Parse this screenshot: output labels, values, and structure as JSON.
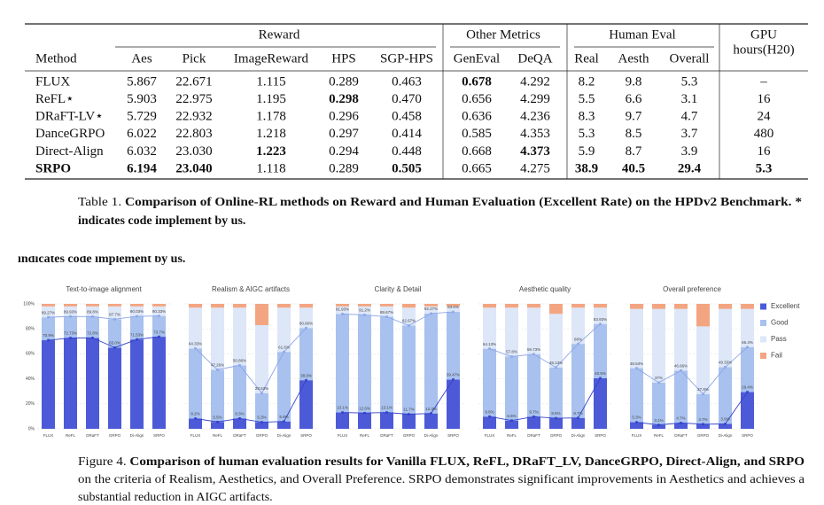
{
  "table": {
    "groups": [
      "Reward",
      "Other Metrics",
      "Human Eval"
    ],
    "gpu_header": [
      "GPU",
      "hours(H20)"
    ],
    "columns": [
      "Method",
      "Aes",
      "Pick",
      "ImageReward",
      "HPS",
      "SGP-HPS",
      "GenEval",
      "DeQA",
      "Real",
      "Aesth",
      "Overall"
    ],
    "rows": [
      {
        "cells": [
          "FLUX",
          "5.867",
          "22.671",
          "1.115",
          "0.289",
          "0.463",
          "0.678",
          "4.292",
          "8.2",
          "9.8",
          "5.3",
          "–"
        ],
        "bold": [
          false,
          false,
          false,
          false,
          false,
          false,
          true,
          false,
          false,
          false,
          false,
          false
        ]
      },
      {
        "cells": [
          "ReFL⋆",
          "5.903",
          "22.975",
          "1.195",
          "0.298",
          "0.470",
          "0.656",
          "4.299",
          "5.5",
          "6.6",
          "3.1",
          "16"
        ],
        "bold": [
          false,
          false,
          false,
          false,
          true,
          false,
          false,
          false,
          false,
          false,
          false,
          false
        ]
      },
      {
        "cells": [
          "DRaFT-LV⋆",
          "5.729",
          "22.932",
          "1.178",
          "0.296",
          "0.458",
          "0.636",
          "4.236",
          "8.3",
          "9.7",
          "4.7",
          "24"
        ],
        "bold": [
          false,
          false,
          false,
          false,
          false,
          false,
          false,
          false,
          false,
          false,
          false,
          false
        ]
      },
      {
        "cells": [
          "DanceGRPO",
          "6.022",
          "22.803",
          "1.218",
          "0.297",
          "0.414",
          "0.585",
          "4.353",
          "5.3",
          "8.5",
          "3.7",
          "480"
        ],
        "bold": [
          false,
          false,
          false,
          false,
          false,
          false,
          false,
          false,
          false,
          false,
          false,
          false
        ]
      },
      {
        "cells": [
          "Direct-Align",
          "6.032",
          "23.030",
          "1.223",
          "0.294",
          "0.448",
          "0.668",
          "4.373",
          "5.9",
          "8.7",
          "3.9",
          "16"
        ],
        "bold": [
          false,
          false,
          false,
          true,
          false,
          false,
          false,
          true,
          false,
          false,
          false,
          false
        ]
      },
      {
        "cells": [
          "SRPO",
          "6.194",
          "23.040",
          "1.118",
          "0.289",
          "0.505",
          "0.665",
          "4.275",
          "38.9",
          "40.5",
          "29.4",
          "5.3"
        ],
        "bold": [
          true,
          true,
          true,
          false,
          false,
          true,
          false,
          false,
          true,
          true,
          true,
          true
        ]
      }
    ],
    "caption": {
      "label": "Table 1.",
      "lines": [
        "Comparison of Online-RL methods on Reward and Human Evaluation (Excellent Rate) on the HPDv2 Benchmark. *",
        "indicates code implement by us."
      ]
    }
  },
  "chart_data": [
    {
      "type": "bar",
      "stacked": true,
      "title": "Text-to-image alignment",
      "categories": [
        "FLUX",
        "ReFL",
        "DRaFT",
        "GRPO",
        "Di-Align",
        "SRPO"
      ],
      "ylim": [
        0,
        100
      ],
      "yticks": [
        {
          "value": 0,
          "label": "0%"
        },
        {
          "value": 20,
          "label": "20%"
        },
        {
          "value": 40,
          "label": "40%"
        },
        {
          "value": 60,
          "label": "60%"
        },
        {
          "value": 80,
          "label": "80%"
        },
        {
          "value": 100,
          "label": "100%"
        }
      ],
      "grid": true,
      "line_colors": [
        "#3342c8",
        "#8ea6e6"
      ],
      "series": [
        {
          "name": "Excellent",
          "color": "#4d5ad8",
          "values": [
            70.9,
            72.73,
            72.8,
            65.0,
            71.53,
            73.7
          ],
          "value_labels": [
            "70.9%",
            "72.73%",
            "72.8%",
            "65.0%",
            "71.53%",
            "73.7%"
          ]
        },
        {
          "name": "Good",
          "color": "#a8c1ee",
          "values": [
            18.37,
            17.2,
            17.0,
            22.7,
            18.5,
            16.63
          ]
        },
        {
          "name": "Pass",
          "color": "#dde7f8",
          "values": [
            8.73,
            8.07,
            8.2,
            10.3,
            7.97,
            7.67
          ]
        },
        {
          "name": "Fail",
          "color": "#f3a582",
          "values": [
            2,
            2,
            2,
            2,
            2,
            2
          ]
        }
      ],
      "cumulative_labels": [
        "89.27%",
        "89.93%",
        "89.8%",
        "87.7%",
        "90.03%",
        "90.33%"
      ]
    },
    {
      "type": "bar",
      "stacked": true,
      "title": "Realism & AIGC artifacts",
      "categories": [
        "FLUX",
        "ReFL",
        "DRaFT",
        "GRPO",
        "Di-Align",
        "SRPO"
      ],
      "ylim": [
        0,
        100
      ],
      "yticks": [
        {
          "value": 0,
          "label": "0%"
        },
        {
          "value": 20,
          "label": "20%"
        },
        {
          "value": 40,
          "label": "40%"
        },
        {
          "value": 60,
          "label": "60%"
        },
        {
          "value": 80,
          "label": "80%"
        },
        {
          "value": 100,
          "label": "100%"
        }
      ],
      "grid": true,
      "line_colors": [
        "#3342c8",
        "#8ea6e6"
      ],
      "series": [
        {
          "name": "Excellent",
          "color": "#4d5ad8",
          "values": [
            8.2,
            5.5,
            8.3,
            5.3,
            5.9,
            38.9
          ],
          "value_labels": [
            "8.2%",
            "5.5%",
            "8.3%",
            "5.3%",
            "5.9%",
            "38.9%"
          ]
        },
        {
          "name": "Good",
          "color": "#a8c1ee",
          "values": [
            56.13,
            41.76,
            42.56,
            23.23,
            55.7,
            41.76
          ]
        },
        {
          "name": "Pass",
          "color": "#dde7f8",
          "values": [
            32.67,
            49.74,
            46.14,
            54.47,
            35.4,
            16.34
          ]
        },
        {
          "name": "Fail",
          "color": "#f3a582",
          "values": [
            3,
            3,
            3,
            17,
            3,
            3
          ]
        }
      ],
      "cumulative_labels": [
        "64.33%",
        "47.26%",
        "50.86%",
        "28.53%",
        "61.6%",
        "80.66%"
      ]
    },
    {
      "type": "bar",
      "stacked": true,
      "title": "Clarity & Detail",
      "categories": [
        "FLUX",
        "ReFL",
        "DRaFT",
        "GRPO",
        "Di-Align",
        "SRPO"
      ],
      "ylim": [
        0,
        100
      ],
      "yticks": [
        {
          "value": 0,
          "label": "0%"
        },
        {
          "value": 20,
          "label": "20%"
        },
        {
          "value": 40,
          "label": "40%"
        },
        {
          "value": 60,
          "label": "60%"
        },
        {
          "value": 80,
          "label": "80%"
        },
        {
          "value": 100,
          "label": "100%"
        }
      ],
      "grid": true,
      "line_colors": [
        "#3342c8",
        "#8ea6e6"
      ],
      "series": [
        {
          "name": "Excellent",
          "color": "#4d5ad8",
          "values": [
            13.1,
            12.6,
            13.1,
            11.7,
            12.3,
            39.47
          ],
          "value_labels": [
            "13.1%",
            "12.6%",
            "13.1%",
            "11.7%",
            "12.3%",
            "39.47%"
          ]
        },
        {
          "name": "Good",
          "color": "#a8c1ee",
          "values": [
            78.83,
            78.6,
            76.57,
            70.97,
            79.97,
            54.13
          ]
        },
        {
          "name": "Pass",
          "color": "#dde7f8",
          "values": [
            6.07,
            6.8,
            8.33,
            14.33,
            5.73,
            4.4
          ]
        },
        {
          "name": "Fail",
          "color": "#f3a582",
          "values": [
            2,
            2,
            2,
            3,
            2,
            2
          ]
        }
      ],
      "cumulative_labels": [
        "91.93%",
        "91.2%",
        "89.67%",
        "82.67%",
        "92.27%",
        "93.6%"
      ]
    },
    {
      "type": "bar",
      "stacked": true,
      "title": "Aesthetic quality",
      "categories": [
        "FLUX",
        "ReFL",
        "DRaFT",
        "GRPO",
        "Di-Align",
        "SRPO"
      ],
      "ylim": [
        0,
        100
      ],
      "yticks": [
        {
          "value": 0,
          "label": "0%"
        },
        {
          "value": 20,
          "label": "20%"
        },
        {
          "value": 40,
          "label": "40%"
        },
        {
          "value": 60,
          "label": "60%"
        },
        {
          "value": 80,
          "label": "80%"
        },
        {
          "value": 100,
          "label": "100%"
        }
      ],
      "grid": true,
      "line_colors": [
        "#3342c8",
        "#8ea6e6"
      ],
      "series": [
        {
          "name": "Excellent",
          "color": "#4d5ad8",
          "values": [
            9.8,
            6.6,
            9.7,
            8.5,
            8.7,
            40.5
          ],
          "value_labels": [
            "9.8%",
            "6.6%",
            "9.7%",
            "8.5%",
            "8.7%",
            "40.5%"
          ]
        },
        {
          "name": "Good",
          "color": "#a8c1ee",
          "values": [
            54.33,
            51.2,
            50.03,
            40.63,
            59.3,
            43.43
          ]
        },
        {
          "name": "Pass",
          "color": "#dde7f8",
          "values": [
            32.87,
            39.2,
            37.27,
            42.87,
            29,
            13.07
          ]
        },
        {
          "name": "Fail",
          "color": "#f3a582",
          "values": [
            3,
            3,
            3,
            8,
            3,
            3
          ]
        }
      ],
      "cumulative_labels": [
        "64.13%",
        "57.8%",
        "59.73%",
        "49.13%",
        "68%",
        "83.93%"
      ]
    },
    {
      "type": "bar",
      "stacked": true,
      "title": "Overall preference",
      "categories": [
        "FLUX",
        "ReFL",
        "DRaFT",
        "GRPO",
        "Di-Align",
        "SRPO"
      ],
      "ylim": [
        0,
        100
      ],
      "yticks": [
        {
          "value": 0,
          "label": "0%"
        },
        {
          "value": 20,
          "label": "20%"
        },
        {
          "value": 40,
          "label": "40%"
        },
        {
          "value": 60,
          "label": "60%"
        },
        {
          "value": 80,
          "label": "80%"
        },
        {
          "value": 100,
          "label": "100%"
        }
      ],
      "grid": true,
      "line_colors": [
        "#3342c8",
        "#8ea6e6"
      ],
      "series": [
        {
          "name": "Excellent",
          "color": "#4d5ad8",
          "values": [
            5.3,
            3.1,
            4.7,
            3.7,
            3.9,
            29.4
          ],
          "value_labels": [
            "5.3%",
            "3.1%",
            "4.7%",
            "3.7%",
            "3.9%",
            "29.4%"
          ]
        },
        {
          "name": "Good",
          "color": "#a8c1ee",
          "values": [
            43.23,
            33.9,
            41.96,
            24.1,
            45.43,
            36.0
          ]
        },
        {
          "name": "Pass",
          "color": "#dde7f8",
          "values": [
            47.47,
            59,
            49.34,
            54.2,
            46.67,
            30.6
          ]
        },
        {
          "name": "Fail",
          "color": "#f3a582",
          "values": [
            4,
            4,
            4,
            18,
            4,
            4
          ]
        }
      ],
      "cumulative_labels": [
        "48.53%",
        "37%",
        "46.66%",
        "27.8%",
        "49.33%",
        "65.4%"
      ]
    }
  ],
  "figure_caption": {
    "label": "Figure 4.",
    "bold": "Comparison of human evaluation results for Vanilla FLUX, ReFL, DRaFT_LV, DanceGRPO, Direct-Align, and SRPO",
    "lines": [
      "on the criteria of Realism, Aesthetics, and Overall Preference. SRPO demonstrates significant improvements in Aesthetics and achieves a",
      "substantial reduction in AIGC artifacts."
    ]
  }
}
